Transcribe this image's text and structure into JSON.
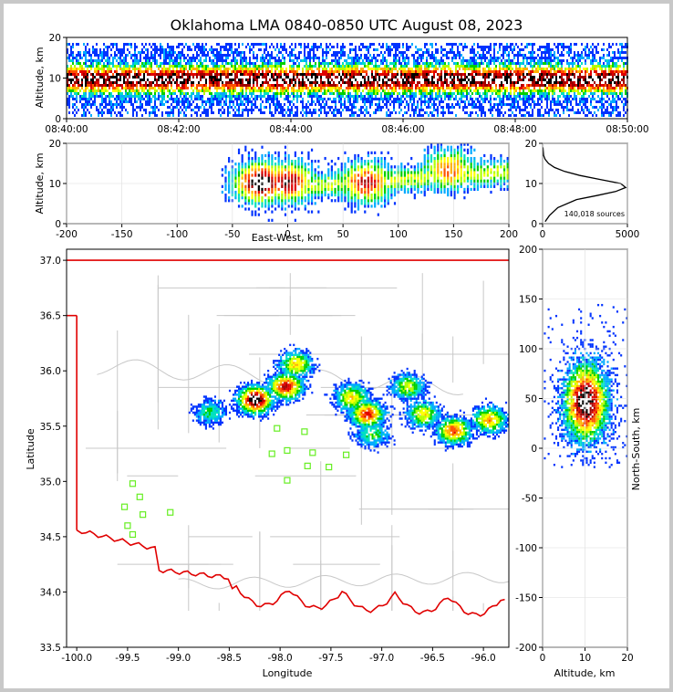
{
  "title": "Oklahoma LMA 0840-0850 UTC August 08, 2023",
  "colors": {
    "frame": "#c8c8c8",
    "state_border": "#e00000",
    "county_lines": "#c8c8c8",
    "stations": "#66ee22",
    "density_scale": [
      "#3a00ff",
      "#0033ff",
      "#00aaff",
      "#00e0c0",
      "#00d000",
      "#b0ff00",
      "#ffff00",
      "#ffb000",
      "#ff5000",
      "#e00000",
      "#a00000",
      "#000000",
      "#ffffff"
    ]
  },
  "chart_data": [
    {
      "name": "altitude-time",
      "type": "heatmap",
      "ylabel": "Altitude, km",
      "xlim": [
        "08:40:00",
        "08:50:00"
      ],
      "ylim": [
        0,
        20
      ],
      "xticks": [
        "08:40:00",
        "08:42:00",
        "08:44:00",
        "08:46:00",
        "08:48:00",
        "08:50:00"
      ],
      "yticks": [
        0,
        10,
        20
      ],
      "band_altitude_km": [
        1,
        19
      ],
      "core_altitude_km": 10
    },
    {
      "name": "east-west-altitude",
      "type": "heatmap",
      "xlabel": "East-West, km",
      "ylabel": "Altitude, km",
      "xlim": [
        -200,
        200
      ],
      "ylim": [
        0,
        20
      ],
      "xticks": [
        -200,
        -150,
        -100,
        -50,
        0,
        50,
        100,
        150,
        200
      ],
      "yticks": [
        0,
        10,
        20
      ],
      "clusters": [
        {
          "x_km": -25,
          "alt_km": 10,
          "intensity": 1.0
        },
        {
          "x_km": 0,
          "alt_km": 10,
          "intensity": 0.85
        },
        {
          "x_km": 70,
          "alt_km": 10,
          "intensity": 0.8
        },
        {
          "x_km": 145,
          "alt_km": 13,
          "intensity": 0.7
        }
      ]
    },
    {
      "name": "altitude-histogram",
      "type": "line",
      "annotation": "140,018 sources",
      "xlim": [
        0,
        5000
      ],
      "ylim": [
        0,
        20
      ],
      "xticks": [
        0,
        5000
      ],
      "yticks": [
        0,
        10,
        20
      ],
      "x": [
        150,
        400,
        900,
        2000,
        3200,
        4300,
        4900,
        4600,
        3400,
        2200,
        1300,
        700,
        350,
        150,
        60,
        20
      ],
      "y": [
        0.5,
        2,
        4,
        6,
        7,
        8,
        9,
        10,
        11,
        12,
        13,
        14,
        15,
        16,
        17,
        19
      ]
    },
    {
      "name": "plan-view",
      "type": "heatmap",
      "xlabel": "Longitude",
      "ylabel": "Latitude",
      "xlim": [
        -100.1,
        -95.75
      ],
      "ylim": [
        33.5,
        37.1
      ],
      "xticks": [
        -100.0,
        -99.5,
        -99.0,
        -98.5,
        -98.0,
        -97.5,
        -97.0,
        -96.5,
        -96.0
      ],
      "yticks": [
        33.5,
        34.0,
        34.5,
        35.0,
        35.5,
        36.0,
        36.5,
        37.0
      ],
      "clusters": [
        {
          "lon": -98.25,
          "lat": 35.73,
          "intensity": 1.0
        },
        {
          "lon": -97.95,
          "lat": 35.85,
          "intensity": 0.8
        },
        {
          "lon": -97.85,
          "lat": 36.05,
          "intensity": 0.55
        },
        {
          "lon": -97.3,
          "lat": 35.75,
          "intensity": 0.55
        },
        {
          "lon": -97.15,
          "lat": 35.6,
          "intensity": 0.75
        },
        {
          "lon": -96.75,
          "lat": 35.85,
          "intensity": 0.45
        },
        {
          "lon": -96.6,
          "lat": 35.6,
          "intensity": 0.5
        },
        {
          "lon": -96.3,
          "lat": 35.45,
          "intensity": 0.7
        },
        {
          "lon": -95.95,
          "lat": 35.55,
          "intensity": 0.6
        },
        {
          "lon": -97.1,
          "lat": 35.42,
          "intensity": 0.35
        },
        {
          "lon": -98.7,
          "lat": 35.62,
          "intensity": 0.3
        }
      ],
      "stations": [
        {
          "lon": -98.03,
          "lat": 35.48
        },
        {
          "lon": -97.76,
          "lat": 35.45
        },
        {
          "lon": -98.08,
          "lat": 35.25
        },
        {
          "lon": -97.93,
          "lat": 35.28
        },
        {
          "lon": -97.68,
          "lat": 35.26
        },
        {
          "lon": -97.35,
          "lat": 35.24
        },
        {
          "lon": -97.73,
          "lat": 35.14
        },
        {
          "lon": -97.52,
          "lat": 35.13
        },
        {
          "lon": -97.93,
          "lat": 35.01
        },
        {
          "lon": -99.45,
          "lat": 34.98
        },
        {
          "lon": -99.38,
          "lat": 34.86
        },
        {
          "lon": -99.53,
          "lat": 34.77
        },
        {
          "lon": -99.35,
          "lat": 34.7
        },
        {
          "lon": -99.08,
          "lat": 34.72
        },
        {
          "lon": -99.5,
          "lat": 34.6
        },
        {
          "lon": -99.45,
          "lat": 34.52
        }
      ]
    },
    {
      "name": "altitude-north-south",
      "type": "heatmap",
      "xlabel": "Altitude, km",
      "ylabel": "North-South, km",
      "xlim": [
        0,
        20
      ],
      "ylim": [
        -200,
        200
      ],
      "xticks": [
        0,
        10,
        20
      ],
      "yticks": [
        -200,
        -150,
        -100,
        -50,
        0,
        50,
        100,
        150,
        200
      ],
      "core": {
        "alt_km": 10,
        "ns_km": 45
      }
    }
  ]
}
